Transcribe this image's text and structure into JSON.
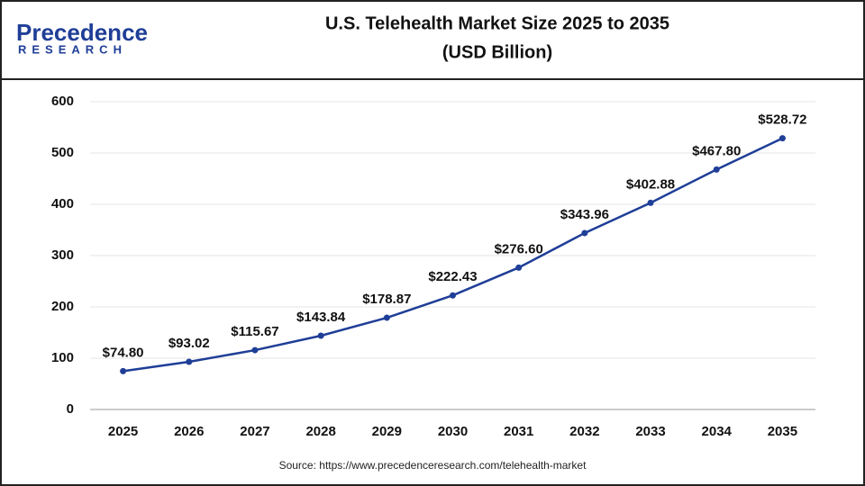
{
  "logo": {
    "name": "Precedence",
    "tagline": "RESEARCH"
  },
  "chart_data": {
    "type": "line",
    "title": "U.S. Telehealth Market Size 2025 to 2035",
    "subtitle": "(USD Billion)",
    "categories": [
      "2025",
      "2026",
      "2027",
      "2028",
      "2029",
      "2030",
      "2031",
      "2032",
      "2033",
      "2034",
      "2035"
    ],
    "series": [
      {
        "color": "#1f3e97",
        "values": [
          74.8,
          93.02,
          115.67,
          143.84,
          178.87,
          222.43,
          276.6,
          343.96,
          402.88,
          467.8,
          528.72
        ],
        "value_labels": [
          "$74.80",
          "$93.02",
          "$115.67",
          "$143.84",
          "$178.87",
          "$222.43",
          "$276.60",
          "$343.96",
          "$402.88",
          "$467.80",
          "$528.72"
        ]
      }
    ],
    "ylim": [
      0,
      600
    ],
    "yticks": [
      0,
      100,
      200,
      300,
      400,
      500,
      600
    ],
    "grid": true,
    "source": "Source: https://www.precedenceresearch.com/telehealth-market"
  }
}
